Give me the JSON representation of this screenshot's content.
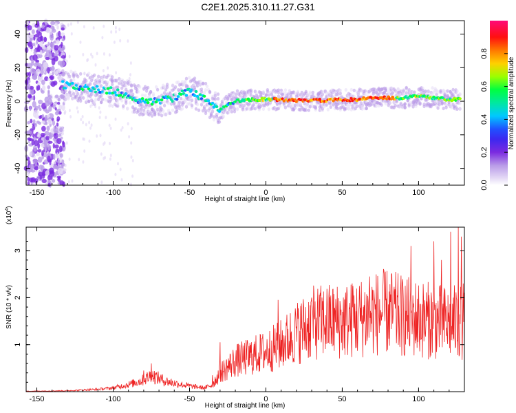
{
  "title": "C2E1.2025.310.11.27.G31",
  "chart_data": [
    {
      "type": "heatmap",
      "name": "spectrogram",
      "xlabel": "Height of straight line (km)",
      "ylabel": "Frequency (Hz)",
      "xlim": [
        -157,
        130
      ],
      "ylim": [
        -50,
        48
      ],
      "xticks": [
        -150,
        -100,
        -50,
        0,
        50,
        100
      ],
      "yticks": [
        -40,
        -20,
        0,
        20,
        40
      ],
      "grid": false,
      "colorbar": {
        "label": "Normalized spectral amplitude",
        "range": [
          0,
          1
        ],
        "ticks": [
          0.0,
          0.2,
          0.4,
          0.6,
          0.8
        ],
        "tick_labels": [
          "0.0",
          "0.2",
          "0.4",
          "0.6",
          "0.8"
        ],
        "colormap": [
          "#ffffff",
          "#d8c8f0",
          "#8a2be2",
          "#2020ff",
          "#00c8ff",
          "#00ff60",
          "#c8ff00",
          "#ff8c00",
          "#ff0000",
          "#ff0080"
        ]
      },
      "ridge": {
        "x": [
          -133,
          -120,
          -110,
          -100,
          -90,
          -80,
          -70,
          -60,
          -50,
          -45,
          -40,
          -35,
          -30,
          -25,
          -20,
          -10,
          0,
          10,
          20,
          30,
          40,
          50,
          60,
          70,
          80,
          90,
          100,
          110,
          120,
          128
        ],
        "y": [
          10,
          8,
          7,
          6,
          3,
          0,
          0,
          2,
          6,
          4,
          2,
          -2,
          -5,
          -2,
          0,
          1,
          1,
          1,
          0.5,
          0.5,
          0.5,
          1,
          1,
          2,
          2,
          2,
          3,
          2,
          1,
          1
        ]
      }
    },
    {
      "type": "line",
      "name": "snr",
      "xlabel": "Height of straight line (km)",
      "ylabel": "SNR (10 * v/v)",
      "y_scale_label": "(x10",
      "y_scale_exponent": "4",
      "xlim": [
        -157,
        130
      ],
      "ylim": [
        0,
        3.5
      ],
      "xticks": [
        -150,
        -100,
        -50,
        0,
        50,
        100
      ],
      "yticks": [
        1,
        2,
        3
      ],
      "color": "#ee2222",
      "envelope": {
        "x": [
          -157,
          -130,
          -110,
          -100,
          -90,
          -80,
          -75,
          -70,
          -65,
          -60,
          -50,
          -40,
          -35,
          -30,
          -20,
          -10,
          0,
          10,
          20,
          30,
          40,
          50,
          60,
          70,
          80,
          90,
          100,
          110,
          120,
          128
        ],
        "y": [
          0.01,
          0.02,
          0.05,
          0.08,
          0.15,
          0.25,
          0.35,
          0.28,
          0.22,
          0.18,
          0.12,
          0.08,
          0.15,
          0.4,
          0.65,
          0.75,
          0.85,
          1.0,
          1.25,
          1.45,
          1.5,
          1.5,
          1.55,
          1.65,
          1.7,
          1.6,
          1.55,
          1.5,
          1.45,
          1.5
        ]
      },
      "peaks": {
        "x": [
          -80,
          -75,
          -35,
          -30,
          8,
          30,
          57,
          68,
          95,
          110,
          115,
          121,
          126,
          128
        ],
        "y": [
          0.45,
          0.6,
          0.35,
          1.05,
          1.95,
          2.0,
          2.25,
          2.45,
          3.1,
          3.2,
          2.8,
          3.4,
          3.5,
          3.3
        ]
      }
    }
  ]
}
